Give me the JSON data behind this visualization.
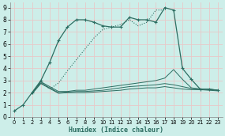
{
  "xlabel": "Humidex (Indice chaleur)",
  "background_color": "#cdeee9",
  "grid_color": "#e8c8c8",
  "line_color": "#2d6e62",
  "xlim": [
    -0.5,
    23.5
  ],
  "ylim": [
    0,
    9.4
  ],
  "xticks": [
    0,
    1,
    2,
    3,
    4,
    5,
    6,
    7,
    8,
    9,
    10,
    11,
    12,
    13,
    14,
    15,
    16,
    17,
    18,
    19,
    20,
    21,
    22,
    23
  ],
  "yticks": [
    0,
    1,
    2,
    3,
    4,
    5,
    6,
    7,
    8,
    9
  ],
  "line1_x": [
    0,
    1,
    2,
    3,
    4,
    5,
    6,
    7,
    8,
    9,
    10,
    11,
    12,
    13,
    14,
    15,
    16,
    17,
    18,
    19,
    20,
    21,
    22,
    23
  ],
  "line1_y": [
    0.5,
    1.0,
    2.0,
    3.0,
    4.5,
    6.3,
    7.4,
    8.0,
    8.0,
    7.8,
    7.5,
    7.4,
    7.4,
    8.2,
    8.0,
    8.0,
    7.8,
    9.0,
    8.8,
    4.0,
    3.1,
    2.3,
    2.3,
    2.2
  ],
  "dotted_x": [
    2,
    3,
    4,
    5,
    6,
    7,
    8,
    9,
    10,
    11,
    12,
    13,
    14,
    15,
    16,
    17
  ],
  "dotted_y": [
    2.0,
    2.9,
    2.3,
    2.8,
    3.8,
    4.7,
    5.6,
    6.5,
    7.2,
    7.4,
    7.6,
    8.0,
    7.5,
    7.8,
    8.8,
    8.8
  ],
  "line2_x": [
    2,
    3,
    5,
    6,
    7,
    8,
    9,
    10,
    11,
    12,
    13,
    14,
    15,
    16,
    17,
    18,
    19,
    20,
    21,
    22,
    23
  ],
  "line2_y": [
    2.0,
    2.9,
    2.1,
    2.1,
    2.2,
    2.2,
    2.3,
    2.4,
    2.5,
    2.6,
    2.7,
    2.8,
    2.9,
    3.0,
    3.2,
    3.9,
    3.1,
    2.4,
    2.3,
    2.3,
    2.2
  ],
  "line3_x": [
    2,
    3,
    5,
    6,
    7,
    8,
    9,
    10,
    11,
    12,
    13,
    14,
    15,
    16,
    17,
    18,
    19,
    20,
    21,
    22,
    23
  ],
  "line3_y": [
    1.95,
    2.8,
    2.0,
    2.05,
    2.1,
    2.1,
    2.15,
    2.2,
    2.3,
    2.4,
    2.5,
    2.55,
    2.6,
    2.65,
    2.75,
    2.65,
    2.5,
    2.35,
    2.3,
    2.25,
    2.2
  ],
  "line4_x": [
    2,
    3,
    5,
    6,
    7,
    8,
    9,
    10,
    11,
    12,
    13,
    14,
    15,
    16,
    17,
    18,
    19,
    20,
    21,
    22,
    23
  ],
  "line4_y": [
    1.9,
    2.75,
    1.95,
    2.0,
    2.0,
    2.0,
    2.05,
    2.1,
    2.15,
    2.2,
    2.3,
    2.35,
    2.4,
    2.4,
    2.5,
    2.4,
    2.3,
    2.25,
    2.25,
    2.2,
    2.15
  ]
}
